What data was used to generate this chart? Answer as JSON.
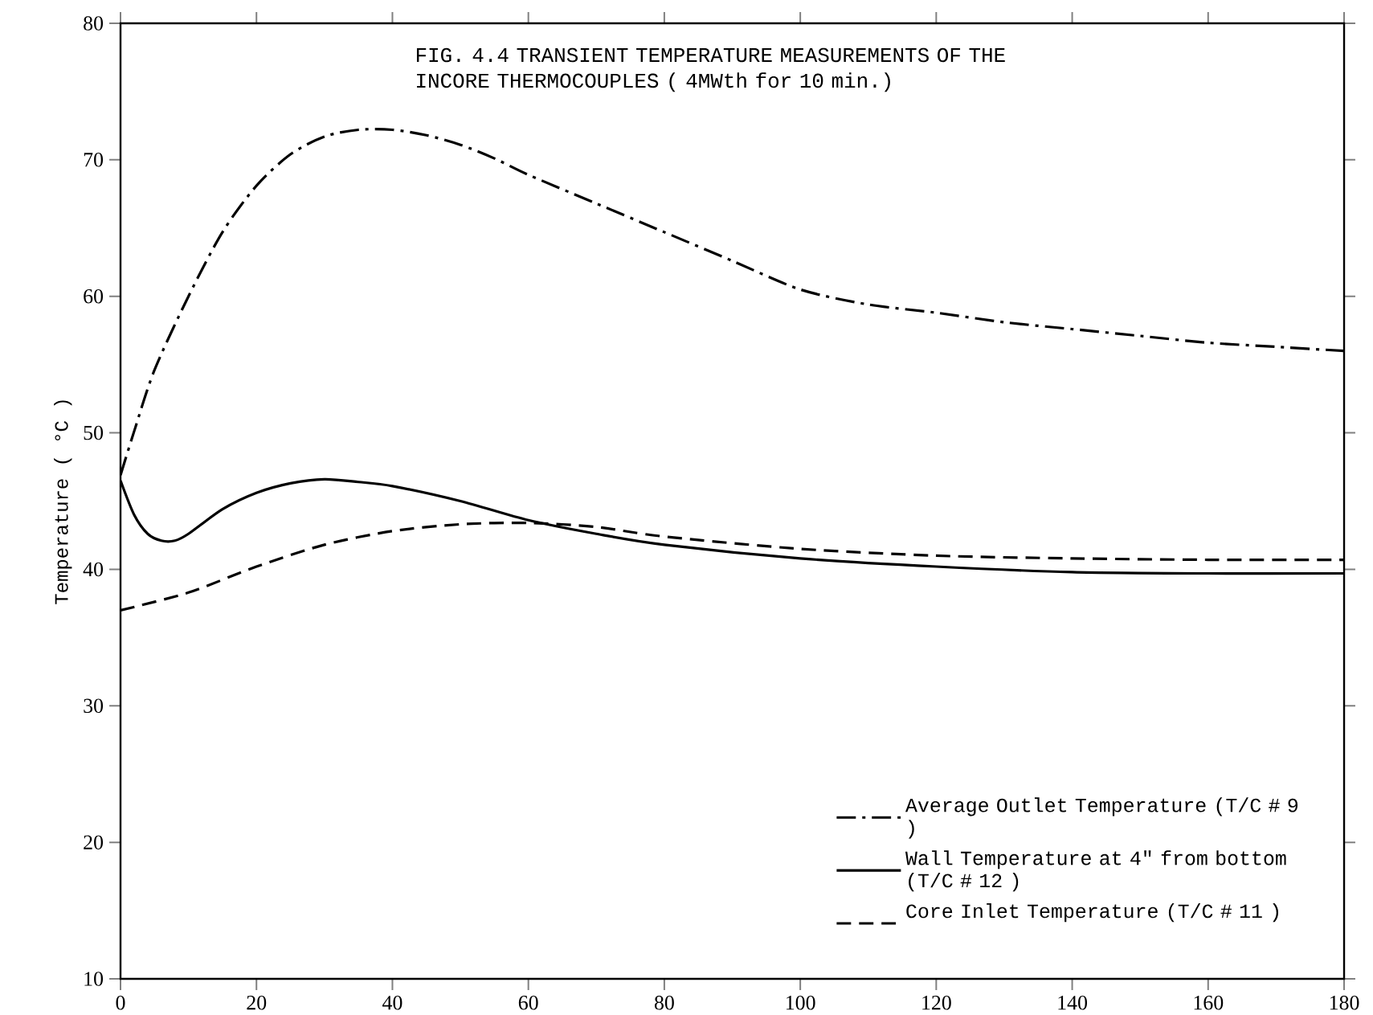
{
  "chart_data": {
    "type": "line",
    "title": "FIG. 4.4  TRANSIENT TEMPERATURE MEASUREMENTS OF THE INCORE THERMOCOUPLES ( 4MWth for 10 min.)",
    "ylabel": "Temperature  ( °C )",
    "xlim": [
      0,
      180
    ],
    "ylim": [
      10,
      80
    ],
    "xticks": [
      0,
      20,
      40,
      60,
      80,
      100,
      120,
      140,
      160,
      180
    ],
    "yticks": [
      10,
      20,
      30,
      40,
      50,
      60,
      70,
      80
    ],
    "legend": "bottom right",
    "series": [
      {
        "name": "Average Outlet Temperature (T/C # 9 )",
        "color": "#000000",
        "line_style": "dashdot",
        "x": [
          0,
          2,
          5,
          10,
          15,
          20,
          25,
          30,
          35,
          40,
          45,
          50,
          55,
          60,
          70,
          80,
          90,
          100,
          110,
          120,
          130,
          140,
          150,
          160,
          170,
          180
        ],
        "values": [
          46.9,
          50.1,
          54.6,
          60.0,
          64.7,
          68.1,
          70.4,
          71.7,
          72.2,
          72.2,
          71.8,
          71.1,
          70.1,
          68.9,
          66.8,
          64.7,
          62.6,
          60.5,
          59.4,
          58.8,
          58.1,
          57.6,
          57.1,
          56.6,
          56.3,
          56.0
        ]
      },
      {
        "name": "Wall Temperature at 4\" from bottom (T/C # 12 )",
        "color": "#000000",
        "line_style": "solid",
        "x": [
          0,
          2,
          4,
          6,
          8,
          10,
          15,
          20,
          25,
          30,
          35,
          40,
          50,
          60,
          70,
          80,
          100,
          120,
          140,
          160,
          180
        ],
        "values": [
          46.5,
          44.0,
          42.6,
          42.1,
          42.1,
          42.6,
          44.4,
          45.6,
          46.3,
          46.6,
          46.4,
          46.1,
          45.0,
          43.6,
          42.6,
          41.8,
          40.8,
          40.2,
          39.8,
          39.7,
          39.7
        ]
      },
      {
        "name": "Core Inlet Temperature (T/C # 11 )",
        "color": "#000000",
        "line_style": "dashed",
        "x": [
          0,
          10,
          20,
          30,
          40,
          50,
          60,
          70,
          80,
          100,
          120,
          140,
          160,
          180
        ],
        "values": [
          37.0,
          38.3,
          40.2,
          41.8,
          42.8,
          43.3,
          43.4,
          43.1,
          42.4,
          41.5,
          41.0,
          40.8,
          40.7,
          40.7
        ]
      }
    ]
  }
}
